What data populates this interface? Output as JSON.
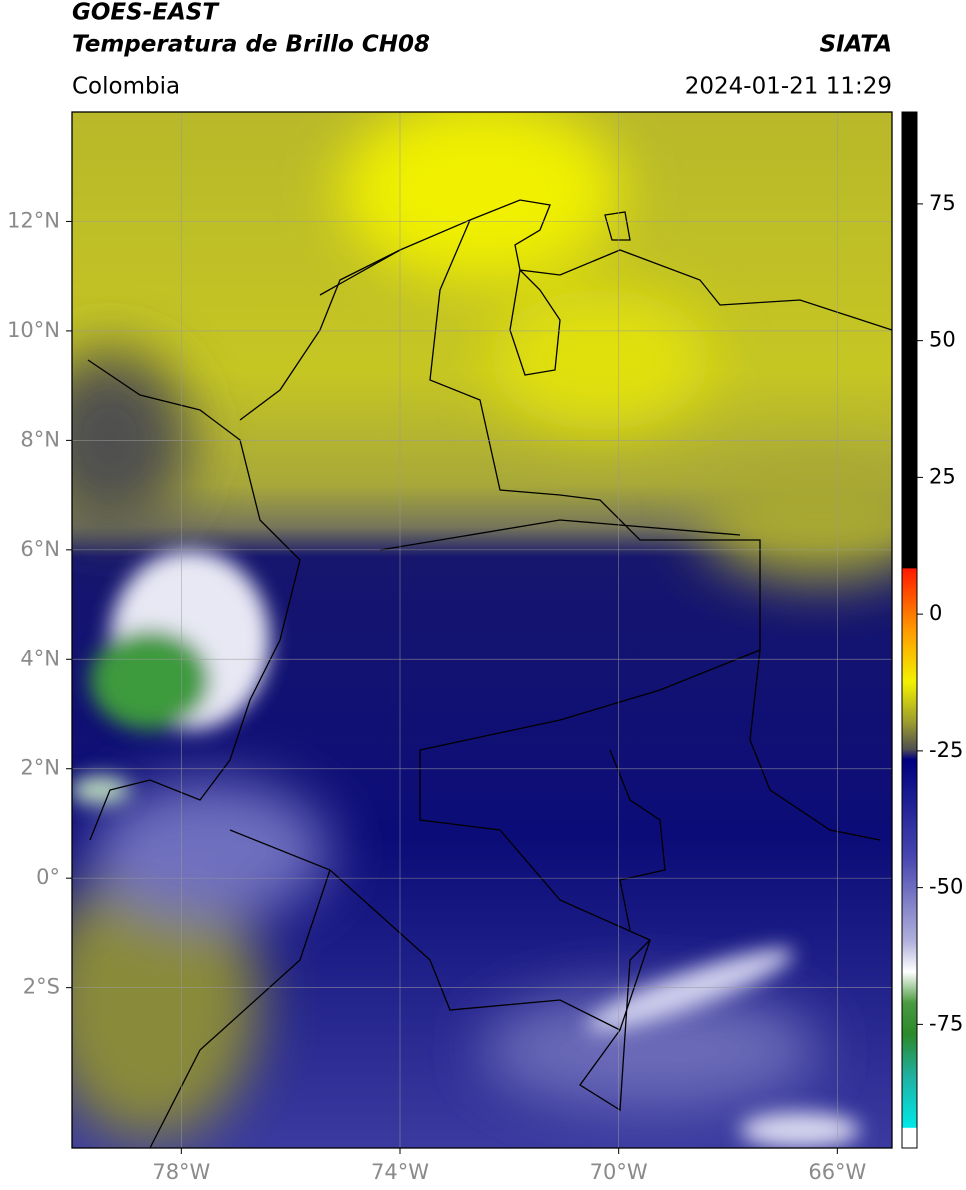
{
  "header": {
    "satellite": "GOES-EAST",
    "product": "Temperatura de Brillo CH08",
    "agency": "SIATA",
    "region": "Colombia",
    "datetime": "2024-01-21 11:29"
  },
  "map": {
    "xlim": [
      -80,
      -65
    ],
    "ylim": [
      -4.93,
      14
    ],
    "xticks": [
      {
        "value": -78,
        "label": "78°W"
      },
      {
        "value": -74,
        "label": "74°W"
      },
      {
        "value": -70,
        "label": "70°W"
      },
      {
        "value": -66,
        "label": "66°W"
      }
    ],
    "yticks": [
      {
        "value": 12,
        "label": "12°N"
      },
      {
        "value": 10,
        "label": "10°N"
      },
      {
        "value": 8,
        "label": "8°N"
      },
      {
        "value": 6,
        "label": "6°N"
      },
      {
        "value": 4,
        "label": "4°N"
      },
      {
        "value": 2,
        "label": "2°N"
      },
      {
        "value": 0,
        "label": "0°"
      },
      {
        "value": -2,
        "label": "2°S"
      }
    ],
    "grid": true
  },
  "colorbar": {
    "lim": [
      -97.6,
      91.8
    ],
    "ticks": [
      75,
      50,
      25,
      0,
      -25,
      -50,
      -75
    ]
  }
}
